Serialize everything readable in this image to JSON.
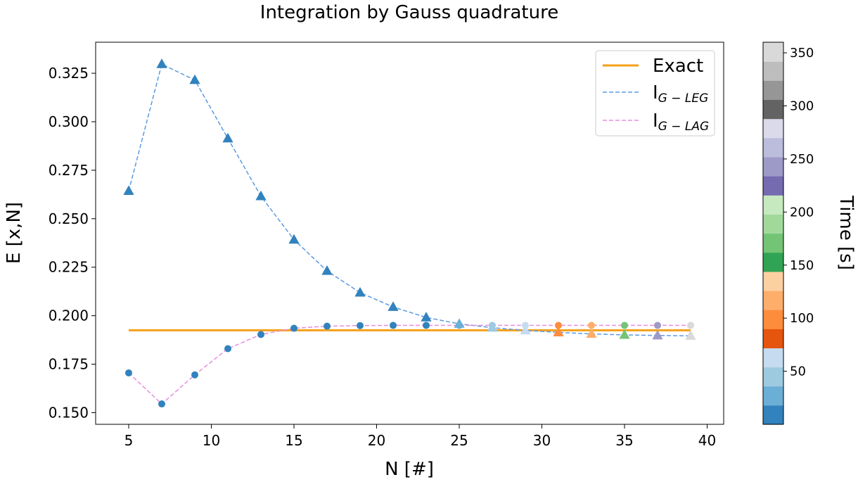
{
  "chart_data": {
    "type": "line",
    "title": "Integration by Gauss quadrature",
    "xlabel": "N [#]",
    "ylabel": "E [x,N]",
    "xlim": [
      3,
      41
    ],
    "ylim": [
      0.144,
      0.341
    ],
    "xticks": [
      5,
      10,
      15,
      20,
      25,
      30,
      35,
      40
    ],
    "yticks": [
      0.15,
      0.175,
      0.2,
      0.225,
      0.25,
      0.275,
      0.3,
      0.325
    ],
    "ytick_labels": [
      "0.150",
      "0.175",
      "0.200",
      "0.225",
      "0.250",
      "0.275",
      "0.300",
      "0.325"
    ],
    "legend_position": "top-right",
    "exact": {
      "name": "Exact",
      "color": "#f5a01a",
      "x": [
        5,
        39
      ],
      "y": [
        0.1925,
        0.1925
      ]
    },
    "series": [
      {
        "name": "I",
        "name_subscript": "G − LEG",
        "line_color": "#5b9ae0",
        "marker": "triangle",
        "x": [
          5,
          7,
          9,
          11,
          13,
          15,
          17,
          19,
          21,
          23,
          25,
          27,
          29,
          31,
          33,
          35,
          37,
          39
        ],
        "y": [
          0.2643,
          0.3297,
          0.3215,
          0.2914,
          0.2616,
          0.2392,
          0.2231,
          0.2119,
          0.2045,
          0.1991,
          0.1958,
          0.1938,
          0.1924,
          0.1914,
          0.1906,
          0.1901,
          0.1898,
          0.1896
        ],
        "time": [
          5,
          5,
          5,
          5,
          5,
          5,
          5,
          5,
          5,
          5,
          20,
          40,
          55,
          100,
          120,
          170,
          240,
          350
        ]
      },
      {
        "name": "I",
        "name_subscript": "G − LAG",
        "line_color": "#e58ee0",
        "marker": "circle",
        "x": [
          5,
          7,
          9,
          11,
          13,
          15,
          17,
          19,
          21,
          23,
          25,
          27,
          29,
          31,
          33,
          35,
          37,
          39
        ],
        "y": [
          0.1705,
          0.1545,
          0.1695,
          0.183,
          0.1903,
          0.1935,
          0.1946,
          0.1949,
          0.195,
          0.195,
          0.195,
          0.195,
          0.195,
          0.195,
          0.195,
          0.195,
          0.195,
          0.195
        ],
        "time": [
          5,
          5,
          5,
          5,
          5,
          5,
          5,
          5,
          5,
          5,
          20,
          40,
          55,
          100,
          120,
          170,
          240,
          350
        ]
      }
    ],
    "colorbar": {
      "label": "Time [s]",
      "range": [
        0,
        360
      ],
      "ticks": [
        50,
        100,
        150,
        200,
        250,
        300,
        350
      ],
      "colors": [
        "#3182bd",
        "#6baed6",
        "#9ecae1",
        "#c6dbef",
        "#e6550d",
        "#fd8d3c",
        "#fdae6b",
        "#fdd0a2",
        "#31a354",
        "#74c476",
        "#a1d99b",
        "#c7e9c0",
        "#756bb1",
        "#9e9ac8",
        "#bcbddc",
        "#dadaeb",
        "#636363",
        "#969696",
        "#bdbdbd",
        "#d9d9d9"
      ]
    }
  }
}
